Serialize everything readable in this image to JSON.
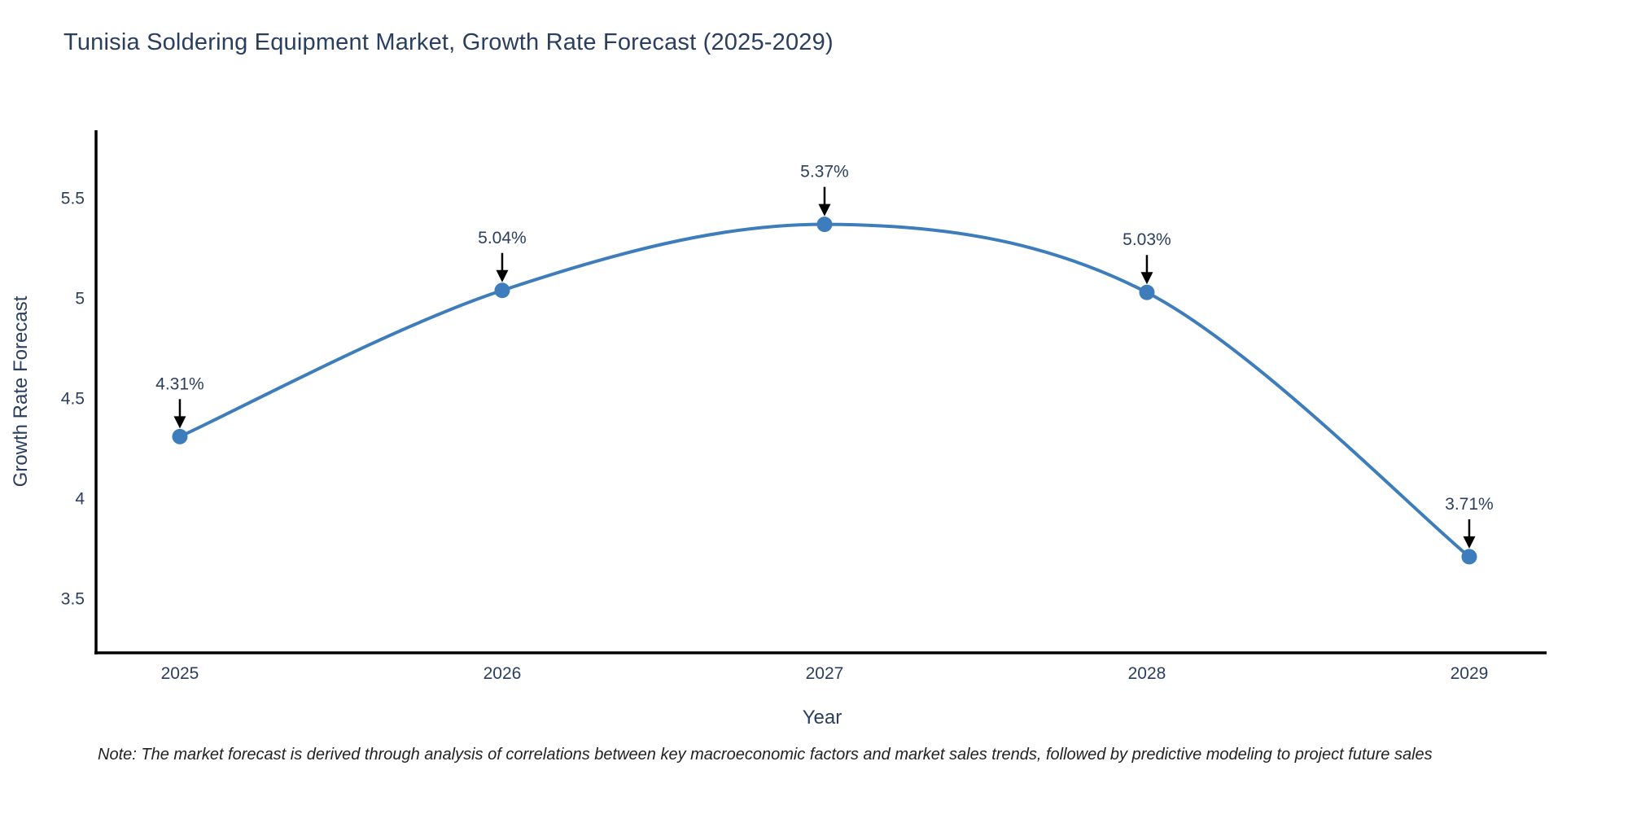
{
  "note": "Note: The market forecast is derived through analysis of correlations between key macroeconomic factors and market sales trends, followed by predictive modeling to project future sales",
  "chart_data": {
    "type": "line",
    "title": "Tunisia Soldering Equipment Market, Growth Rate Forecast (2025-2029)",
    "xlabel": "Year",
    "ylabel": "Growth Rate Forecast",
    "x": [
      2025,
      2026,
      2027,
      2028,
      2029
    ],
    "y": [
      4.31,
      5.04,
      5.37,
      5.03,
      3.71
    ],
    "point_labels": [
      "4.31%",
      "5.04%",
      "5.37%",
      "5.03%",
      "3.71%"
    ],
    "xticks": [
      "2025",
      "2026",
      "2027",
      "2028",
      "2029"
    ],
    "yticks": [
      "3.5",
      "4",
      "4.5",
      "5",
      "5.5"
    ],
    "xlim": [
      2024.74,
      2029.24
    ],
    "ylim": [
      3.23,
      5.84
    ],
    "line_shape": "spline",
    "grid": false,
    "legend_position": "none",
    "colors": {
      "line": "#3d7dbc",
      "marker": "#3d7dbc",
      "axis": "#000000",
      "tick_label": "#2a3f5f",
      "title": "#2a3f5f",
      "axis_title": "#2a3f5f",
      "annotation_text": "#2a3f5f",
      "arrow": "#000000",
      "note_text": "#222222"
    }
  }
}
